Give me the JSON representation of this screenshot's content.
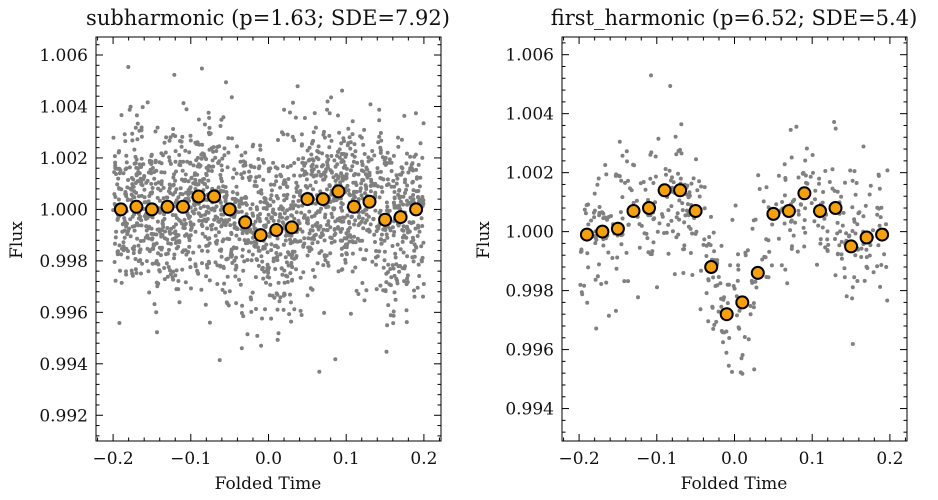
{
  "chart_data": [
    {
      "type": "scatter",
      "title": "subharmonic (p=1.63; SDE=7.92)",
      "xlabel": "Folded Time",
      "ylabel": "Flux",
      "xlim": [
        -0.222,
        0.222
      ],
      "ylim": [
        0.991,
        1.0067
      ],
      "xticks": [
        -0.2,
        -0.1,
        0.0,
        0.1,
        0.2
      ],
      "xtick_labels": [
        "−0.2",
        "−0.1",
        "0.0",
        "0.1",
        "0.2"
      ],
      "yticks": [
        0.992,
        0.994,
        0.996,
        0.998,
        1.0,
        1.002,
        1.004,
        1.006
      ],
      "ytick_labels": [
        "0.992",
        "0.994",
        "0.996",
        "0.998",
        "1.000",
        "1.002",
        "1.004",
        "1.006"
      ],
      "scatter": {
        "count": 1900,
        "color": "#808080",
        "noise_sd": 0.0016
      },
      "series": [
        {
          "marker_color": "#f5a00f",
          "x": [
            -0.19,
            -0.17,
            -0.15,
            -0.13,
            -0.11,
            -0.09,
            -0.07,
            -0.05,
            -0.03,
            -0.01,
            0.01,
            0.03,
            0.05,
            0.07,
            0.09,
            0.11,
            0.13,
            0.15,
            0.17,
            0.19
          ],
          "y": [
            1.0,
            1.0001,
            1.0,
            1.0001,
            1.0001,
            1.0005,
            1.0005,
            1.0,
            0.9995,
            0.999,
            0.9992,
            0.9993,
            1.0004,
            1.0004,
            1.0007,
            1.0001,
            1.0003,
            0.9996,
            0.9997,
            1.0
          ]
        }
      ]
    },
    {
      "type": "scatter",
      "title": "first_harmonic (p=6.52; SDE=5.4)",
      "xlabel": "Folded Time",
      "ylabel": "Flux",
      "xlim": [
        -0.222,
        0.222
      ],
      "ylim": [
        0.9929,
        1.0066
      ],
      "xticks": [
        -0.2,
        -0.1,
        0.0,
        0.1,
        0.2
      ],
      "xtick_labels": [
        "−0.2",
        "−0.1",
        "0.0",
        "0.1",
        "0.2"
      ],
      "yticks": [
        0.994,
        0.996,
        0.998,
        1.0,
        1.002,
        1.004,
        1.006
      ],
      "ytick_labels": [
        "0.994",
        "0.996",
        "0.998",
        "1.000",
        "1.002",
        "1.004",
        "1.006"
      ],
      "scatter": {
        "count": 480,
        "color": "#808080",
        "noise_sd": 0.0013
      },
      "series": [
        {
          "marker_color": "#f5a00f",
          "x": [
            -0.19,
            -0.17,
            -0.15,
            -0.13,
            -0.11,
            -0.09,
            -0.07,
            -0.05,
            -0.03,
            -0.01,
            0.01,
            0.03,
            0.05,
            0.07,
            0.09,
            0.11,
            0.13,
            0.15,
            0.17,
            0.19
          ],
          "y": [
            0.9999,
            1.0,
            1.0001,
            1.0007,
            1.0008,
            1.0014,
            1.0014,
            1.0007,
            0.9988,
            0.9972,
            0.9976,
            0.9986,
            1.0006,
            1.0007,
            1.0013,
            1.0007,
            1.0008,
            0.9995,
            0.9998,
            0.9999
          ]
        }
      ]
    }
  ]
}
